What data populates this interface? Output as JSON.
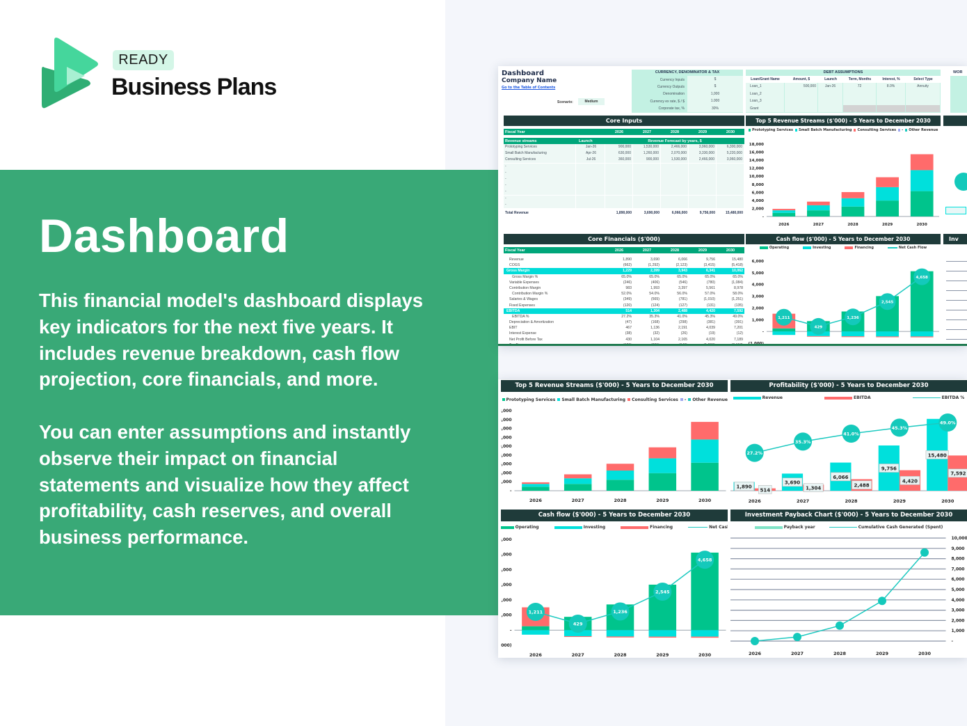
{
  "brand": {
    "badge": "READY",
    "name": "Business Plans"
  },
  "hero": {
    "title": "Dashboard",
    "paragraph1": [
      "This financial model's dashboard displays",
      "key indicators for the next five years. It",
      "includes revenue breakdown, cash flow",
      "projection, core financials, and more."
    ],
    "paragraph2": [
      "You can enter assumptions and instantly",
      "observe their impact on financial",
      "statements and visualize how they affect",
      "profitability, cash reserves, and overall",
      "business performance."
    ]
  },
  "colors": {
    "green_band": "#39a977",
    "dark_header": "#1f3b3a",
    "table_green": "#00a67a",
    "operating": "#00c48c",
    "investing": "#00e0dc",
    "financing": "#ff6b6b",
    "line": "#1cc9c0"
  },
  "sheet": {
    "title": "Dashboard",
    "company": "Company Name",
    "toc_link": "Go to the Table of Contents",
    "scenario_label": "Scenario:",
    "scenario_value": "Medium",
    "currency": {
      "title": "CURRENCY, DENOMINATOR & TAX",
      "rows": [
        [
          "Currency Inputs",
          "$"
        ],
        [
          "Currency Outputs",
          "$"
        ],
        [
          "Denomination",
          "1,000"
        ],
        [
          "Currency ex rate, $ / $",
          "1.000"
        ],
        [
          "Corporate tax, %",
          "30%"
        ]
      ]
    },
    "debt": {
      "title": "DEBT ASSUMPTIONS",
      "headers": [
        "Loan/Grant Name",
        "Amount, $",
        "Launch",
        "Term, Months",
        "Interest, %",
        "Select Type"
      ],
      "rows": [
        [
          "Loan_1",
          "500,000",
          "Jan-26",
          "72",
          "8.0%",
          "Annuity"
        ],
        [
          "Loan_2",
          "",
          "",
          "",
          "",
          ""
        ],
        [
          "Loan_3",
          "",
          "",
          "",
          "",
          ""
        ],
        [
          "Grant",
          "",
          "",
          "",
          "",
          ""
        ]
      ]
    },
    "wor_title": "WOR",
    "core_inputs": {
      "title": "Core Inputs",
      "fiscal_year_label": "Fiscal Year",
      "years": [
        "2026",
        "2027",
        "2028",
        "2029",
        "2030"
      ],
      "streams_label": "Revenue streams",
      "launch_label": "Launch",
      "forecast_label": "Revenue Forecast by years, $",
      "rows": [
        [
          "Prototyping Services",
          "Jan-26",
          "900,000",
          "1,530,000",
          "2,466,000",
          "3,960,000",
          "6,300,000"
        ],
        [
          "Small Batch Manufacturing",
          "Apr-26",
          "630,000",
          "1,260,000",
          "2,070,000",
          "3,330,000",
          "5,220,000"
        ],
        [
          "Consulting Services",
          "Jul-26",
          "360,000",
          "900,000",
          "1,530,000",
          "2,466,000",
          "3,960,000"
        ],
        [
          "-",
          "",
          "",
          "",
          "",
          "",
          ""
        ],
        [
          "-",
          "",
          "",
          "",
          "",
          "",
          ""
        ],
        [
          "-",
          "",
          "",
          "",
          "",
          "",
          ""
        ],
        [
          "-",
          "",
          "",
          "",
          "",
          "",
          ""
        ],
        [
          "-",
          "",
          "",
          "",
          "",
          "",
          ""
        ],
        [
          "-",
          "",
          "",
          "",
          "",
          "",
          ""
        ],
        [
          "-",
          "",
          "",
          "",
          "",
          "",
          ""
        ]
      ],
      "total_label": "Total Revenue",
      "totals": [
        "1,890,000",
        "3,690,000",
        "6,066,000",
        "9,756,000",
        "15,480,000"
      ]
    },
    "core_financials": {
      "title": "Core Financials ($'000)",
      "fiscal_year_label": "Fiscal Year",
      "years": [
        "2026",
        "2027",
        "2028",
        "2029",
        "2030"
      ],
      "rows": [
        {
          "label": "Revenue",
          "values": [
            "1,890",
            "3,690",
            "6,066",
            "9,756",
            "15,480"
          ]
        },
        {
          "label": "COGS",
          "values": [
            "(662)",
            "(1,292)",
            "(2,123)",
            "(3,415)",
            "(5,418)"
          ]
        },
        {
          "label": "Gross Margin",
          "values": [
            "1,229",
            "2,399",
            "3,943",
            "6,341",
            "10,062"
          ],
          "highlight": true
        },
        {
          "label": "Gross Margin %",
          "values": [
            "65.0%",
            "65.0%",
            "65.0%",
            "65.0%",
            "65.0%"
          ],
          "indent": true
        },
        {
          "label": "Variable Expenses",
          "values": [
            "(246)",
            "(406)",
            "(546)",
            "(780)",
            "(1,084)"
          ]
        },
        {
          "label": "Contribution Margin",
          "values": [
            "983",
            "1,993",
            "3,397",
            "5,561",
            "8,978"
          ]
        },
        {
          "label": "Contribution Margin %",
          "values": [
            "52.0%",
            "54.0%",
            "56.0%",
            "57.0%",
            "58.0%"
          ],
          "indent": true
        },
        {
          "label": "Salaries & Wages",
          "values": [
            "(349)",
            "(565)",
            "(781)",
            "(1,010)",
            "(1,251)"
          ]
        },
        {
          "label": "Fixed Expenses",
          "values": [
            "(120)",
            "(124)",
            "(127)",
            "(131)",
            "(135)"
          ]
        },
        {
          "label": "EBITDA",
          "values": [
            "514",
            "1,304",
            "2,488",
            "4,420",
            "7,592"
          ],
          "highlight": true
        },
        {
          "label": "EBITDA %",
          "values": [
            "27.2%",
            "35.3%",
            "41.0%",
            "45.3%",
            "49.0%"
          ],
          "indent": true
        },
        {
          "label": "Depreciation & Amortization",
          "values": [
            "(47)",
            "(168)",
            "(298)",
            "(381)",
            "(391)"
          ]
        },
        {
          "label": "EBIT",
          "values": [
            "467",
            "1,136",
            "2,191",
            "4,039",
            "7,201"
          ]
        },
        {
          "label": "Interest Expense",
          "values": [
            "(38)",
            "(32)",
            "(26)",
            "(19)",
            "(12)"
          ]
        },
        {
          "label": "Net Profit Before Tax",
          "values": [
            "430",
            "1,104",
            "2,165",
            "4,020",
            "7,189"
          ]
        },
        {
          "label": "Tax Expense",
          "values": [
            "(129)",
            "(331)",
            "(649)",
            "(1,206)",
            "(2,157)"
          ]
        }
      ]
    },
    "stub_titles": [
      "Inv"
    ]
  },
  "chart_data": [
    {
      "id": "revenue_streams",
      "type": "bar",
      "mode": "stacked",
      "title": "Top 5 Revenue Streams ($'000) - 5 Years to December 2030",
      "categories": [
        "2026",
        "2027",
        "2028",
        "2029",
        "2030"
      ],
      "series": [
        {
          "name": "Prototyping Services",
          "color": "#00c48c",
          "values": [
            900,
            1530,
            2466,
            3960,
            6300
          ]
        },
        {
          "name": "Small Batch Manufacturing",
          "color": "#00e0dc",
          "values": [
            630,
            1260,
            2070,
            3330,
            5220
          ]
        },
        {
          "name": "Consulting Services",
          "color": "#ff6b6b",
          "values": [
            360,
            900,
            1530,
            2466,
            3960
          ]
        },
        {
          "name": "-",
          "color": "#9fa8f0",
          "values": [
            0,
            0,
            0,
            0,
            0
          ]
        },
        {
          "name": "Other Revenue",
          "color": "#1cc9c0",
          "values": [
            0,
            0,
            0,
            0,
            0
          ]
        }
      ],
      "ylim": [
        0,
        18000
      ],
      "yticks": [
        0,
        2000,
        4000,
        6000,
        8000,
        10000,
        12000,
        14000,
        16000,
        18000
      ],
      "grid": false
    },
    {
      "id": "cash_flow",
      "type": "bar",
      "mode": "stacked",
      "title": "Cash flow ($'000) - 5 Years to December 2030",
      "categories": [
        "2026",
        "2027",
        "2028",
        "2029",
        "2030"
      ],
      "series": [
        {
          "name": "Operating",
          "color": "#00c48c",
          "values": [
            260,
            880,
            1700,
            3010,
            5130
          ]
        },
        {
          "name": "Investing",
          "color": "#00e0dc",
          "values": [
            -300,
            -400,
            -420,
            -430,
            -430
          ]
        },
        {
          "name": "Financing",
          "color": "#ff6b6b",
          "values": [
            1250,
            -50,
            -64,
            -65,
            -72
          ]
        }
      ],
      "line": {
        "name": "Net Cash Flow",
        "color": "#1cc9c0",
        "values": [
          1211,
          429,
          1236,
          2545,
          4658
        ],
        "labels": [
          "1,211",
          "429",
          "1,236",
          "2,545",
          "4,658"
        ]
      },
      "ylim": [
        -1000,
        6000
      ],
      "yticks": [
        -1000,
        0,
        1000,
        2000,
        3000,
        4000,
        5000,
        6000
      ],
      "grid": false
    },
    {
      "id": "profitability",
      "type": "bar",
      "mode": "grouped",
      "title": "Profitability ($'000) - 5 Years to December 2030",
      "categories": [
        "2026",
        "2027",
        "2028",
        "2029",
        "2030"
      ],
      "series": [
        {
          "name": "Revenue",
          "color": "#00e0dc",
          "values": [
            1890,
            3690,
            6066,
            9756,
            15480
          ],
          "labels": [
            "1,890",
            "3,690",
            "6,066",
            "9,756",
            "15,480"
          ]
        },
        {
          "name": "EBITDA",
          "color": "#ff6b6b",
          "values": [
            514,
            1304,
            2488,
            4420,
            7592
          ],
          "labels": [
            "514",
            "1,304",
            "2,488",
            "4,420",
            "7,592"
          ]
        }
      ],
      "line": {
        "name": "EBITDA %",
        "color": "#1cc9c0",
        "values": [
          27.2,
          35.3,
          41.0,
          45.3,
          49.0
        ],
        "labels": [
          "27.2%",
          "35.3%",
          "41.0%",
          "45.3%",
          "49.0%"
        ],
        "ylim": [
          0,
          60
        ]
      },
      "ylim": [
        0,
        18000
      ],
      "yticks": [],
      "grid": false
    },
    {
      "id": "payback",
      "type": "line",
      "title": "Investment Payback Chart ($'000) - 5 Years to December 2030",
      "categories": [
        "2026",
        "2027",
        "2028",
        "2029",
        "2030"
      ],
      "legend": [
        {
          "name": "Payback year",
          "color": "#7fe3c6"
        },
        {
          "name": "Cumulative Cash Generated (Spent)",
          "color": "#1cc9c0"
        }
      ],
      "line": {
        "name": "Cumulative Cash Generated (Spent)",
        "color": "#1cc9c0",
        "values": [
          0,
          400,
          1500,
          3900,
          8600
        ]
      },
      "ylim": [
        0,
        10000
      ],
      "yticks": [
        0,
        1000,
        2000,
        3000,
        4000,
        5000,
        6000,
        7000,
        8000,
        9000,
        10000
      ],
      "yaxis_side": "right",
      "grid": true
    }
  ]
}
